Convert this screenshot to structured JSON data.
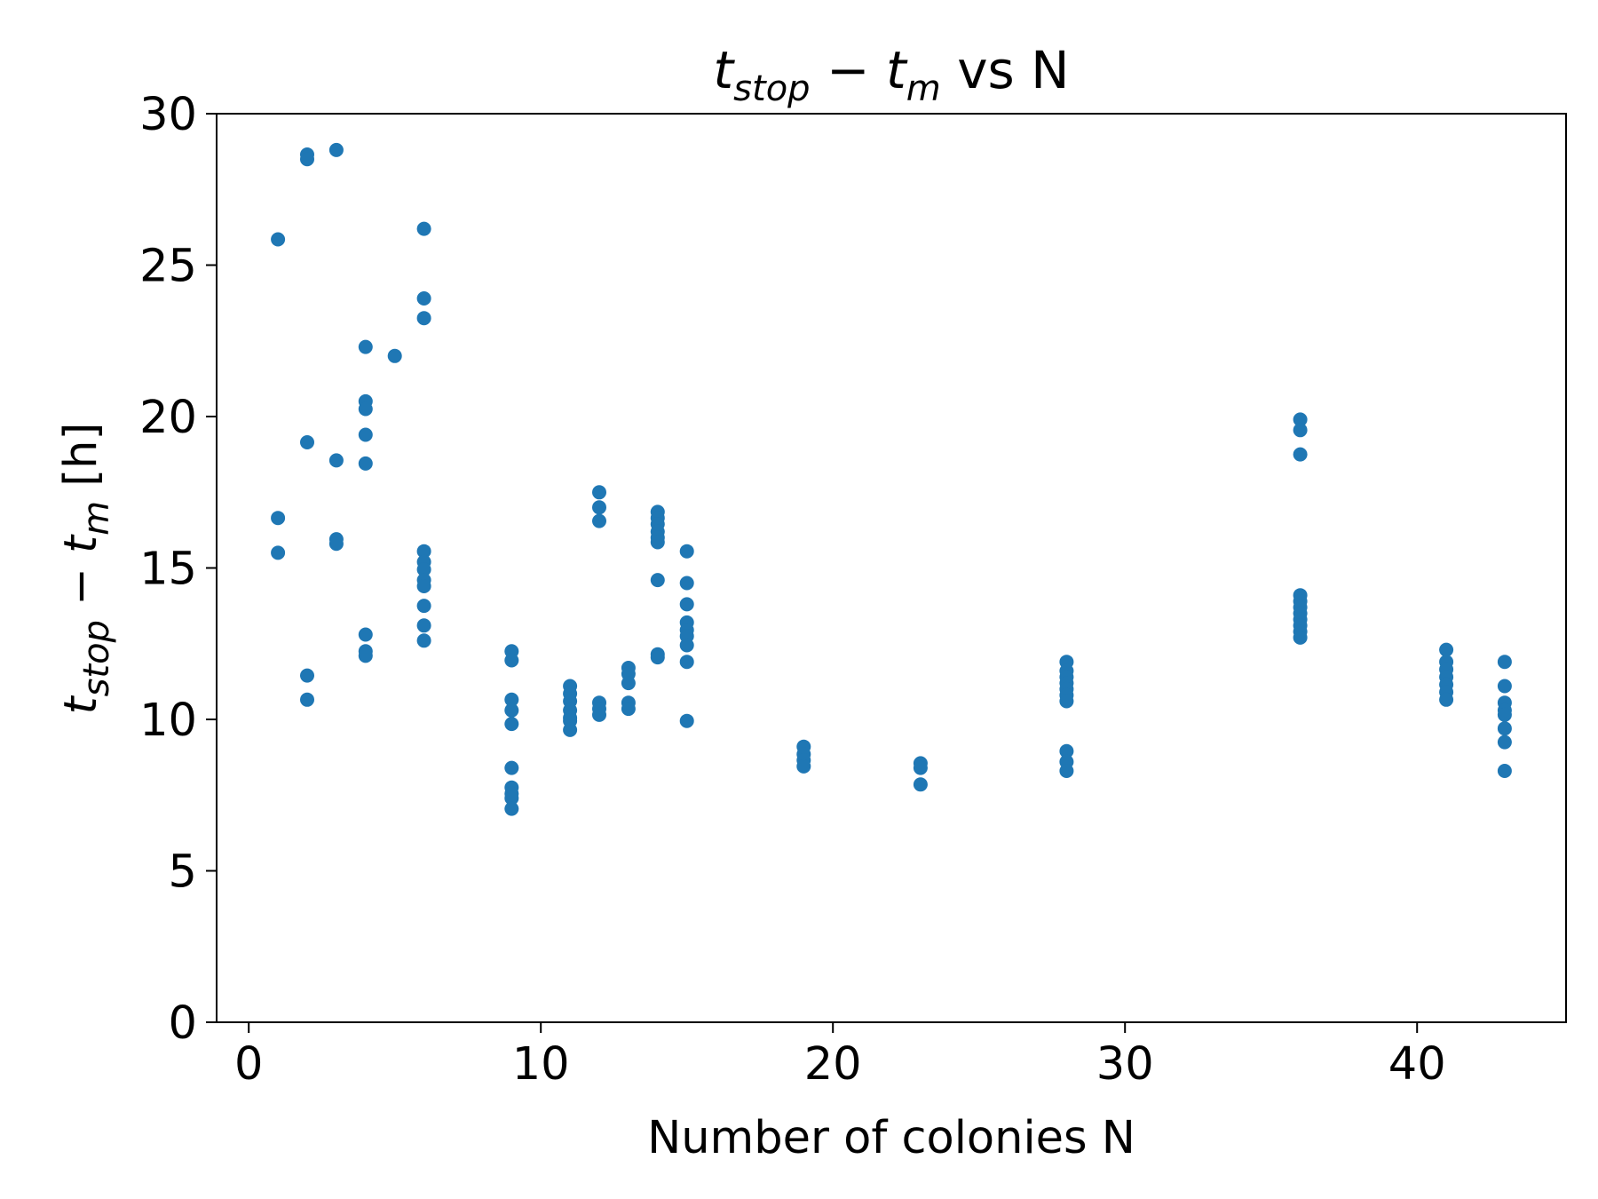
{
  "chart_data": {
    "type": "scatter",
    "title": {
      "a": "t",
      "a_sub": "stop",
      "op": " − ",
      "b": "t",
      "b_sub": "m",
      "rest": " vs N"
    },
    "xlabel": "Number of colonies N",
    "ylabel": {
      "a": "t",
      "a_sub": "stop",
      "op": " − ",
      "b": "t",
      "b_sub": "m",
      "rest": " [h]"
    },
    "xlim": [
      -1.1,
      45.1
    ],
    "ylim": [
      0,
      30
    ],
    "xticks": [
      0,
      10,
      20,
      30,
      40
    ],
    "yticks": [
      0,
      5,
      10,
      15,
      20,
      25,
      30
    ],
    "grid": false,
    "marker_color": "#1f77b4",
    "points": [
      [
        1,
        25.85
      ],
      [
        1,
        16.65
      ],
      [
        1,
        15.5
      ],
      [
        2,
        28.65
      ],
      [
        2,
        28.5
      ],
      [
        2,
        19.15
      ],
      [
        2,
        11.45
      ],
      [
        2,
        10.65
      ],
      [
        3,
        28.8
      ],
      [
        3,
        18.55
      ],
      [
        3,
        15.95
      ],
      [
        3,
        15.8
      ],
      [
        4,
        22.3
      ],
      [
        4,
        20.5
      ],
      [
        4,
        20.25
      ],
      [
        4,
        19.4
      ],
      [
        4,
        18.45
      ],
      [
        4,
        12.8
      ],
      [
        4,
        12.25
      ],
      [
        4,
        12.1
      ],
      [
        5,
        22.0
      ],
      [
        6,
        26.2
      ],
      [
        6,
        23.9
      ],
      [
        6,
        23.25
      ],
      [
        6,
        15.55
      ],
      [
        6,
        15.2
      ],
      [
        6,
        14.95
      ],
      [
        6,
        14.6
      ],
      [
        6,
        14.4
      ],
      [
        6,
        13.75
      ],
      [
        6,
        13.1
      ],
      [
        6,
        12.6
      ],
      [
        9,
        12.25
      ],
      [
        9,
        11.95
      ],
      [
        9,
        10.65
      ],
      [
        9,
        10.3
      ],
      [
        9,
        9.85
      ],
      [
        9,
        8.4
      ],
      [
        9,
        7.75
      ],
      [
        9,
        7.55
      ],
      [
        9,
        7.4
      ],
      [
        9,
        7.05
      ],
      [
        11,
        11.1
      ],
      [
        11,
        10.85
      ],
      [
        11,
        10.6
      ],
      [
        11,
        10.3
      ],
      [
        11,
        10.05
      ],
      [
        11,
        9.95
      ],
      [
        11,
        9.65
      ],
      [
        12,
        17.5
      ],
      [
        12,
        17.0
      ],
      [
        12,
        16.55
      ],
      [
        12,
        10.55
      ],
      [
        12,
        10.35
      ],
      [
        12,
        10.15
      ],
      [
        13,
        11.7
      ],
      [
        13,
        11.5
      ],
      [
        13,
        11.2
      ],
      [
        13,
        10.55
      ],
      [
        13,
        10.35
      ],
      [
        14,
        16.85
      ],
      [
        14,
        16.65
      ],
      [
        14,
        16.45
      ],
      [
        14,
        16.2
      ],
      [
        14,
        16.0
      ],
      [
        14,
        15.85
      ],
      [
        14,
        14.6
      ],
      [
        14,
        12.15
      ],
      [
        14,
        12.05
      ],
      [
        15,
        15.55
      ],
      [
        15,
        14.5
      ],
      [
        15,
        13.8
      ],
      [
        15,
        13.2
      ],
      [
        15,
        12.95
      ],
      [
        15,
        12.75
      ],
      [
        15,
        12.45
      ],
      [
        15,
        11.9
      ],
      [
        15,
        9.95
      ],
      [
        19,
        9.1
      ],
      [
        19,
        8.85
      ],
      [
        19,
        8.65
      ],
      [
        19,
        8.45
      ],
      [
        23,
        8.55
      ],
      [
        23,
        8.4
      ],
      [
        23,
        7.85
      ],
      [
        28,
        11.9
      ],
      [
        28,
        11.6
      ],
      [
        28,
        11.4
      ],
      [
        28,
        11.2
      ],
      [
        28,
        11.0
      ],
      [
        28,
        10.8
      ],
      [
        28,
        10.6
      ],
      [
        28,
        8.95
      ],
      [
        28,
        8.6
      ],
      [
        28,
        8.3
      ],
      [
        36,
        19.9
      ],
      [
        36,
        19.55
      ],
      [
        36,
        18.75
      ],
      [
        36,
        14.1
      ],
      [
        36,
        13.9
      ],
      [
        36,
        13.7
      ],
      [
        36,
        13.5
      ],
      [
        36,
        13.3
      ],
      [
        36,
        13.1
      ],
      [
        36,
        12.9
      ],
      [
        36,
        12.7
      ],
      [
        41,
        12.3
      ],
      [
        41,
        11.9
      ],
      [
        41,
        11.65
      ],
      [
        41,
        11.4
      ],
      [
        41,
        11.15
      ],
      [
        41,
        10.9
      ],
      [
        41,
        10.65
      ],
      [
        43,
        11.9
      ],
      [
        43,
        11.1
      ],
      [
        43,
        10.55
      ],
      [
        43,
        10.3
      ],
      [
        43,
        10.15
      ],
      [
        43,
        9.7
      ],
      [
        43,
        9.25
      ],
      [
        43,
        8.3
      ]
    ]
  }
}
